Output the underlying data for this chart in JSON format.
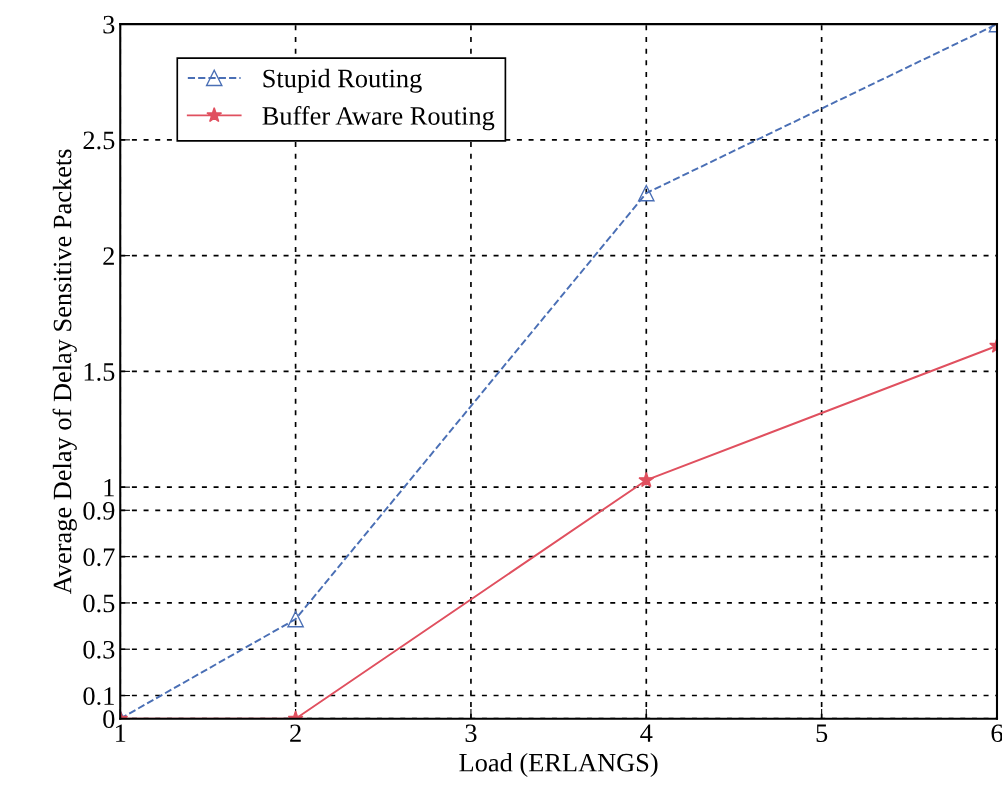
{
  "chart_data": {
    "type": "line",
    "xlabel": "Load (ERLANGS)",
    "ylabel": "Average Delay of Delay Sensitive Packets",
    "x": [
      1,
      2,
      4,
      6
    ],
    "series": [
      {
        "name": "Stupid Routing",
        "color": "#4a6fb5",
        "values": [
          0.0,
          0.43,
          2.27,
          3.0
        ],
        "marker": "triangle",
        "line_style": "dashed"
      },
      {
        "name": "Buffer Aware Routing",
        "color": "#e0505f",
        "values": [
          0.0,
          0.0,
          1.03,
          1.61
        ],
        "marker": "star",
        "line_style": "solid"
      }
    ],
    "xlim": [
      1,
      6
    ],
    "xticks": [
      1,
      2,
      3,
      4,
      5,
      6
    ],
    "ylim": [
      0,
      3
    ],
    "yticks": [
      0,
      0.1,
      0.3,
      0.5,
      0.7,
      0.9,
      1,
      1.5,
      2,
      2.5,
      3
    ],
    "grid": true,
    "legend": "top left"
  }
}
